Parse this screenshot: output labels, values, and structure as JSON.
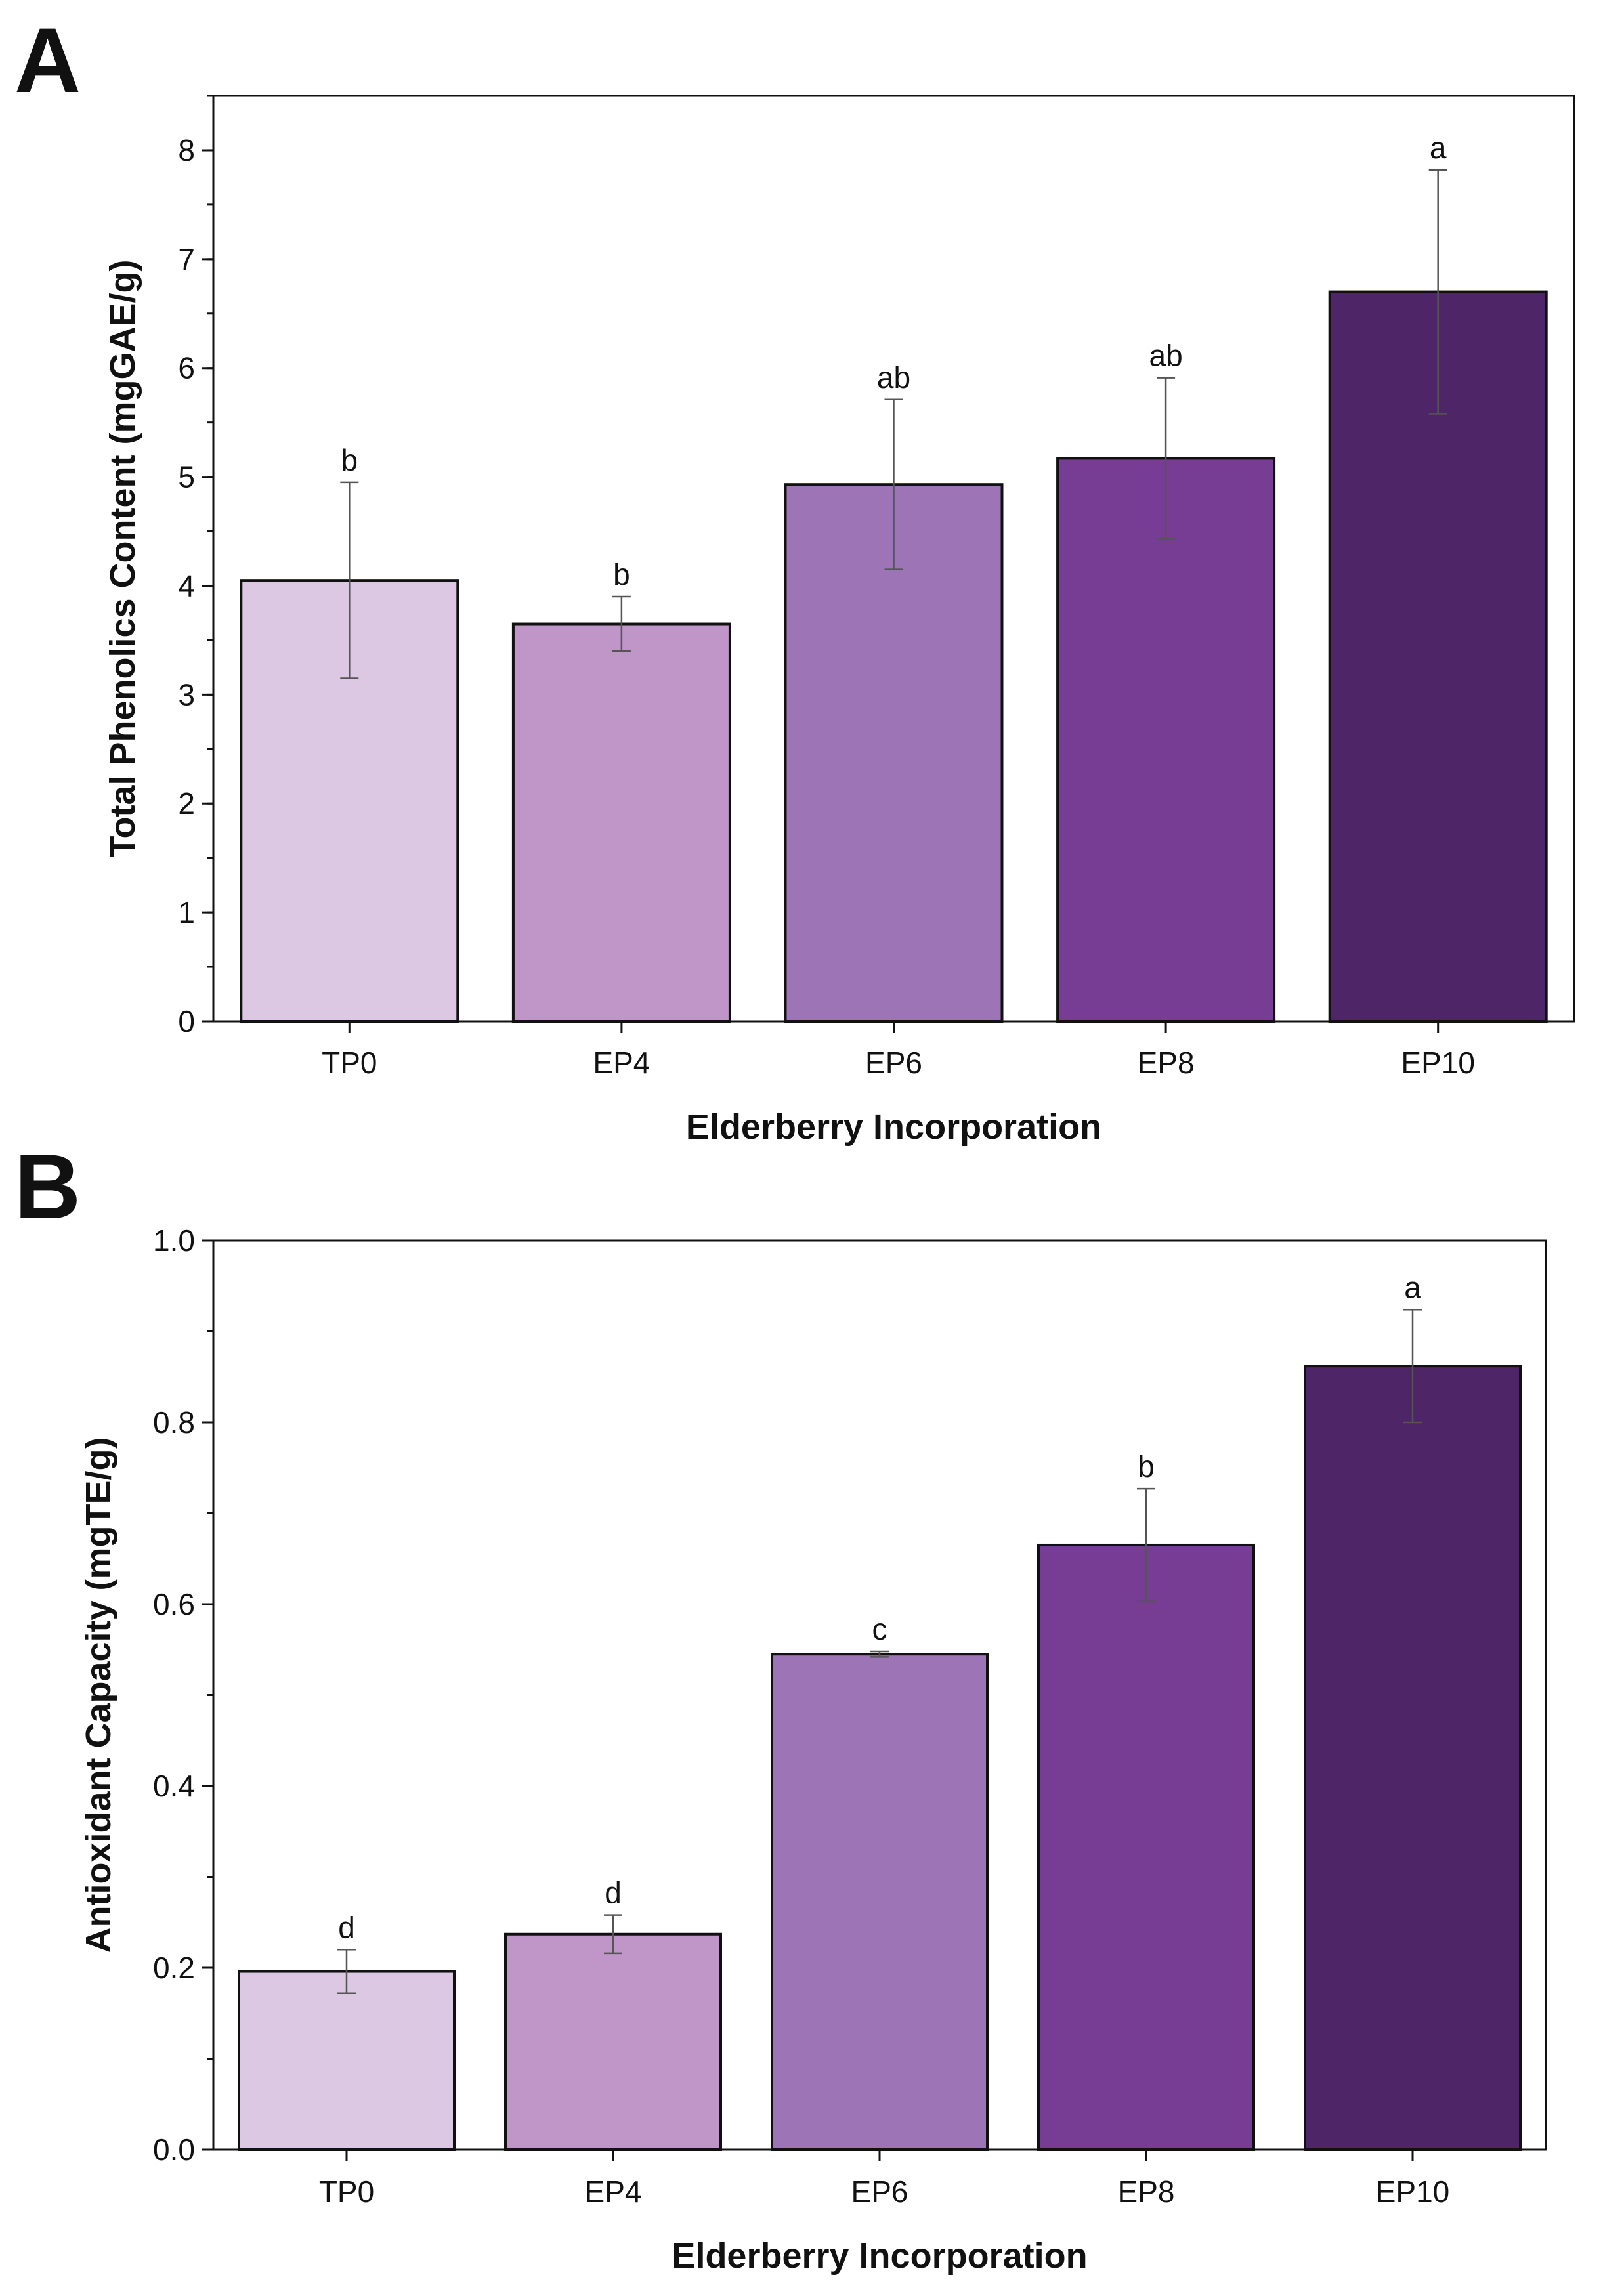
{
  "chart_data": [
    {
      "panel": "A",
      "type": "bar",
      "xlabel": "Elderberry Incorporation",
      "ylabel": "Total Phenolics Content (mgGAE/g)",
      "ylim": [
        0,
        8.5
      ],
      "yticks": [
        0,
        1,
        2,
        3,
        4,
        5,
        6,
        7,
        8
      ],
      "ytick_labels": [
        "0",
        "1",
        "2",
        "3",
        "4",
        "5",
        "6",
        "7",
        "8"
      ],
      "minor_step": 0.5,
      "categories": [
        "TP0",
        "EP4",
        "EP6",
        "EP8",
        "EP10"
      ],
      "values": [
        4.05,
        3.65,
        4.93,
        5.17,
        6.7
      ],
      "errors": [
        0.9,
        0.25,
        0.78,
        0.74,
        1.12
      ],
      "significance": [
        "b",
        "b",
        "ab",
        "ab",
        "a"
      ],
      "colors": [
        "#dcc8e3",
        "#c095c8",
        "#9d74b6",
        "#773c94",
        "#4e2566"
      ]
    },
    {
      "panel": "B",
      "type": "bar",
      "xlabel": "Elderberry Incorporation",
      "ylabel": "Antioxidant Capacity (mgTE/g)",
      "ylim": [
        0,
        1.0
      ],
      "yticks": [
        0,
        0.2,
        0.4,
        0.6,
        0.8,
        1.0
      ],
      "ytick_labels": [
        "0.0",
        "0.2",
        "0.4",
        "0.6",
        "0.8",
        "1.0"
      ],
      "minor_step": 0.1,
      "categories": [
        "TP0",
        "EP4",
        "EP6",
        "EP8",
        "EP10"
      ],
      "values": [
        0.196,
        0.237,
        0.545,
        0.665,
        0.862
      ],
      "errors": [
        0.024,
        0.021,
        0.003,
        0.062,
        0.062
      ],
      "significance": [
        "d",
        "d",
        "c",
        "b",
        "a"
      ],
      "colors": [
        "#dcc8e3",
        "#c095c8",
        "#9d74b6",
        "#773c94",
        "#4e2566"
      ]
    }
  ]
}
